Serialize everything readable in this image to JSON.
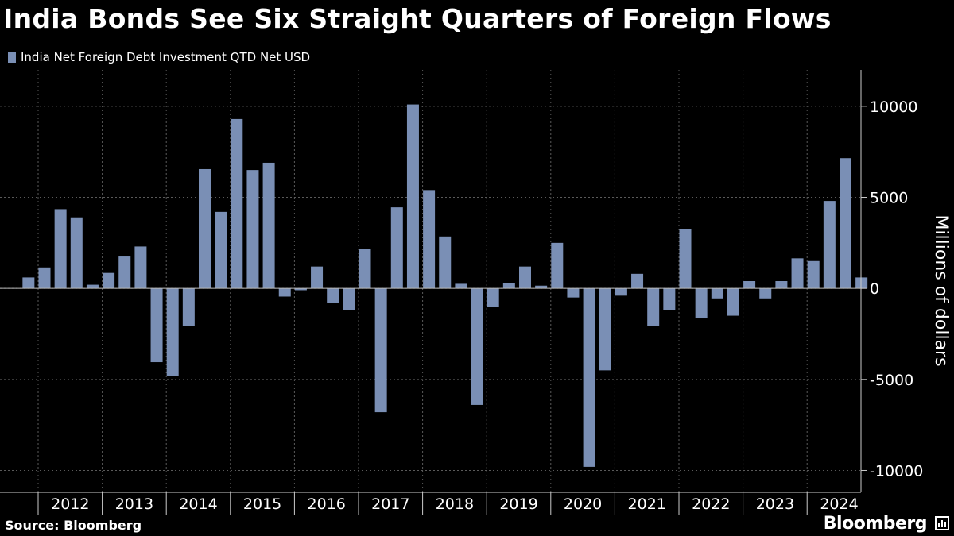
{
  "header": {
    "title": "India Bonds See Six Straight Quarters of Foreign Flows"
  },
  "footer": {
    "source": "Source: Bloomberg",
    "brand": "Bloomberg"
  },
  "colors": {
    "background": "#000000",
    "bar": "#7a8fb5",
    "grid": "#5a5a5a",
    "text": "#ffffff"
  },
  "chart_data": {
    "type": "bar",
    "title": "India Bonds See Six Straight Quarters of Foreign Flows",
    "legend": "India Net Foreign Debt Investment QTD Net USD",
    "ylabel": "Millions of dollars",
    "xlabel": "",
    "ylim": [
      -11200,
      12000
    ],
    "yticks": [
      10000,
      5000,
      0,
      -5000,
      -10000
    ],
    "years": [
      "2012",
      "2013",
      "2014",
      "2015",
      "2016",
      "2017",
      "2018",
      "2019",
      "2020",
      "2021",
      "2022",
      "2023",
      "2024"
    ],
    "values": [
      600,
      1150,
      4350,
      3900,
      200,
      850,
      1750,
      2300,
      -4050,
      -4800,
      -2050,
      6550,
      4200,
      9300,
      6500,
      6900,
      -450,
      -100,
      1200,
      -800,
      -1200,
      2150,
      -6800,
      4450,
      10100,
      5400,
      2850,
      250,
      -6400,
      -1000,
      300,
      1200,
      150,
      2500,
      -500,
      -9800,
      -4500,
      -400,
      800,
      -2050,
      -1200,
      3250,
      -1650,
      -550,
      -1500,
      400,
      -550,
      400,
      1650,
      1500,
      4800,
      7150,
      600
    ]
  }
}
